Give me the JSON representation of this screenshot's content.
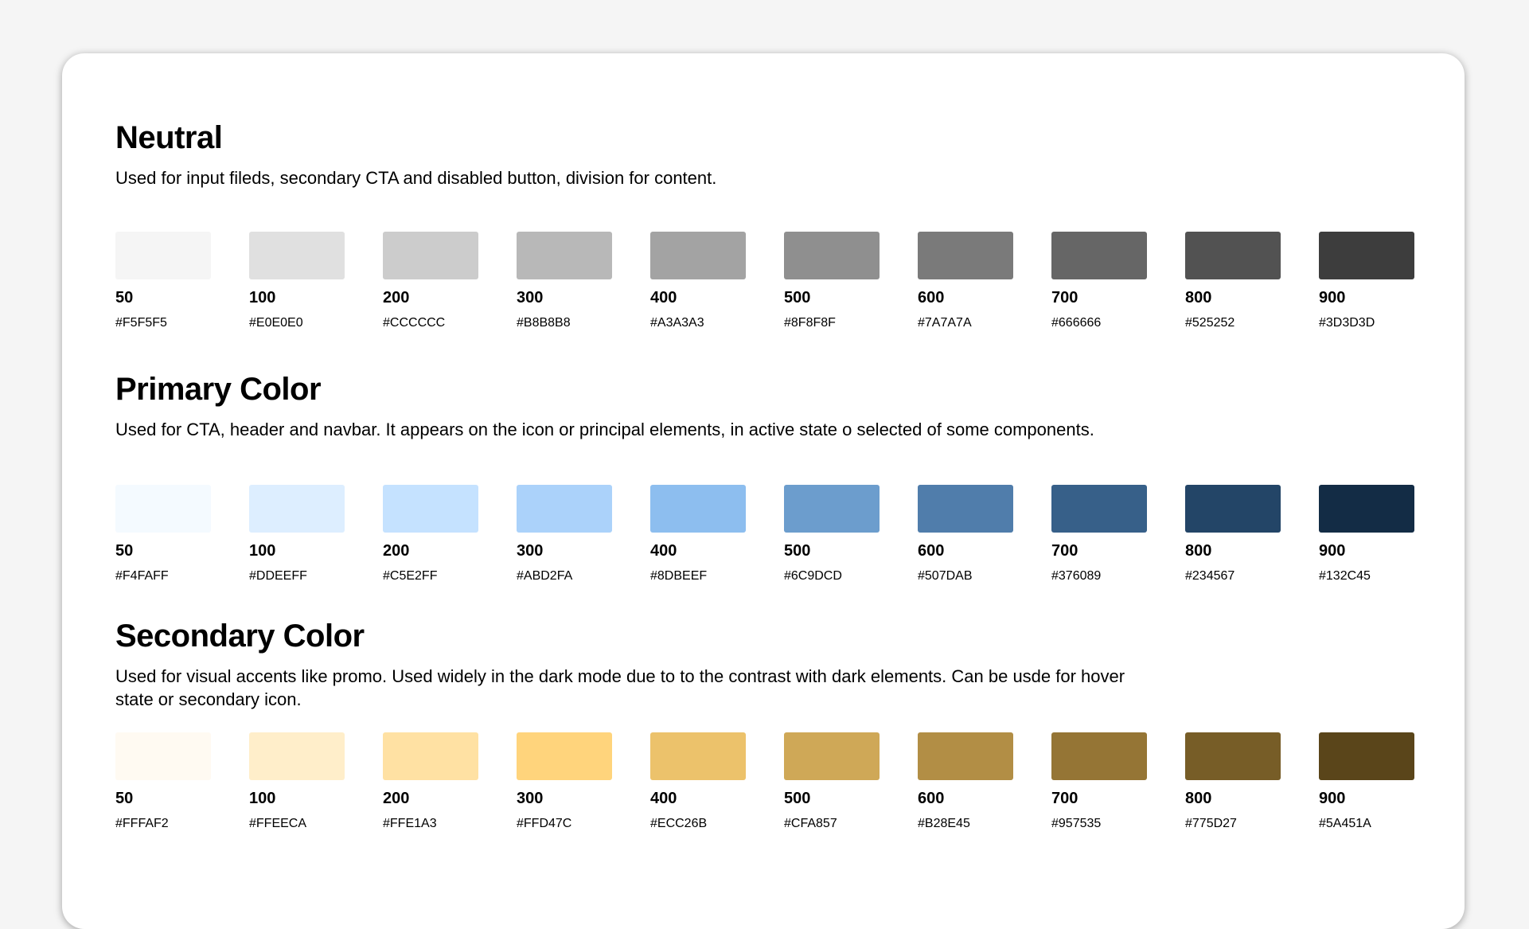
{
  "sections": [
    {
      "title": "Neutral",
      "description": "Used for input fileds, secondary CTA and disabled button, division for content.",
      "swatches": [
        {
          "label": "50",
          "hex": "#F5F5F5"
        },
        {
          "label": "100",
          "hex": "#E0E0E0"
        },
        {
          "label": "200",
          "hex": "#CCCCCC"
        },
        {
          "label": "300",
          "hex": "#B8B8B8"
        },
        {
          "label": "400",
          "hex": "#A3A3A3"
        },
        {
          "label": "500",
          "hex": "#8F8F8F"
        },
        {
          "label": "600",
          "hex": "#7A7A7A"
        },
        {
          "label": "700",
          "hex": "#666666"
        },
        {
          "label": "800",
          "hex": "#525252"
        },
        {
          "label": "900",
          "hex": "#3D3D3D"
        }
      ]
    },
    {
      "title": "Primary Color",
      "description": "Used for CTA, header and navbar. It appears on the icon or principal elements, in active state o selected of some components.",
      "swatches": [
        {
          "label": "50",
          "hex": "#F4FAFF"
        },
        {
          "label": "100",
          "hex": "#DDEEFF"
        },
        {
          "label": "200",
          "hex": "#C5E2FF"
        },
        {
          "label": "300",
          "hex": "#ABD2FA"
        },
        {
          "label": "400",
          "hex": "#8DBEEF"
        },
        {
          "label": "500",
          "hex": "#6C9DCD"
        },
        {
          "label": "600",
          "hex": "#507DAB"
        },
        {
          "label": "700",
          "hex": "#376089"
        },
        {
          "label": "800",
          "hex": "#234567"
        },
        {
          "label": "900",
          "hex": "#132C45"
        }
      ]
    },
    {
      "title": "Secondary Color",
      "description": "Used for visual accents like promo. Used widely in the dark mode due to to the contrast with dark elements. Can be usde for hover state or secondary icon.",
      "swatches": [
        {
          "label": "50",
          "hex": "#FFFAF2"
        },
        {
          "label": "100",
          "hex": "#FFEECA"
        },
        {
          "label": "200",
          "hex": "#FFE1A3"
        },
        {
          "label": "300",
          "hex": "#FFD47C"
        },
        {
          "label": "400",
          "hex": "#ECC26B"
        },
        {
          "label": "500",
          "hex": "#CFA857"
        },
        {
          "label": "600",
          "hex": "#B28E45"
        },
        {
          "label": "700",
          "hex": "#957535"
        },
        {
          "label": "800",
          "hex": "#775D27"
        },
        {
          "label": "900",
          "hex": "#5A451A"
        }
      ]
    }
  ]
}
